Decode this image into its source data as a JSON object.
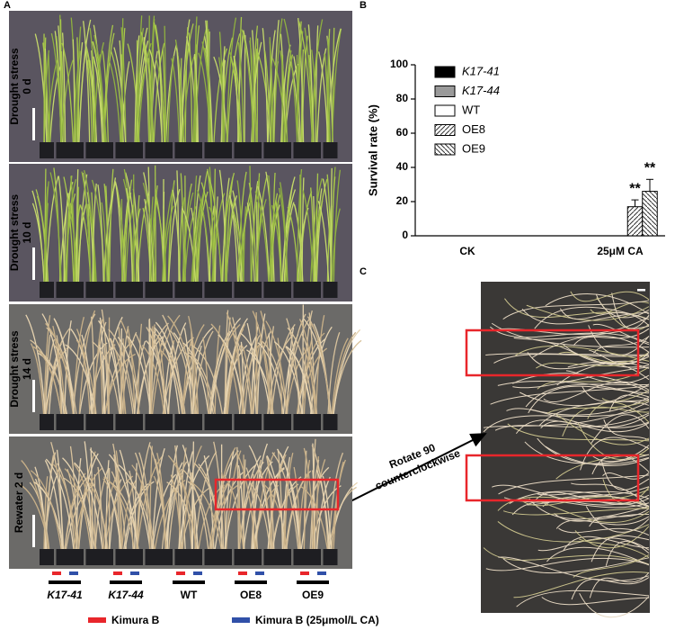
{
  "panels": {
    "a": "A",
    "b": "B",
    "c": "C"
  },
  "photo_rows": [
    {
      "lines": [
        "Drought stress",
        "0 d"
      ],
      "tone": "green"
    },
    {
      "lines": [
        "Drought stress",
        "10 d"
      ],
      "tone": "green"
    },
    {
      "lines": [
        "Drought stress",
        "14 d"
      ],
      "tone": "straw"
    },
    {
      "lines": [
        "Rewater 2 d"
      ],
      "tone": "straw"
    }
  ],
  "genotypes": [
    {
      "label": "K17-41",
      "italic": true
    },
    {
      "label": "K17-44",
      "italic": true
    },
    {
      "label": "WT",
      "italic": false
    },
    {
      "label": "OE8",
      "italic": false
    },
    {
      "label": "OE9",
      "italic": false
    }
  ],
  "legend": [
    {
      "label": "Kimura B",
      "color": "#e8262b"
    },
    {
      "label": "Kimura B (25μmol/L CA)",
      "color": "#3050a8"
    }
  ],
  "arrow_text": [
    "Rotate 90",
    "counterclockwise"
  ],
  "chart_data": {
    "type": "bar",
    "ylabel": "Survival rate (%)",
    "categories": [
      "CK",
      "25μM CA"
    ],
    "ylim": [
      0,
      100
    ],
    "yticks": [
      0,
      20,
      40,
      60,
      80,
      100
    ],
    "series": [
      {
        "name": "K17-41",
        "italic": true,
        "color": "#000000",
        "values": [
          0,
          0
        ]
      },
      {
        "name": "K17-44",
        "italic": true,
        "color": "#9a9a9a",
        "values": [
          0,
          0
        ]
      },
      {
        "name": "WT",
        "italic": false,
        "color": "#ffffff",
        "values": [
          0,
          0
        ]
      },
      {
        "name": "OE8",
        "italic": false,
        "color": "#ffffff",
        "hatch": "forward",
        "values": [
          0,
          17
        ],
        "errors": [
          null,
          4
        ],
        "significance": [
          null,
          "**"
        ]
      },
      {
        "name": "OE9",
        "italic": false,
        "color": "#ffffff",
        "hatch": "backward",
        "values": [
          0,
          26
        ],
        "errors": [
          null,
          7
        ],
        "significance": [
          null,
          "**"
        ]
      }
    ]
  }
}
